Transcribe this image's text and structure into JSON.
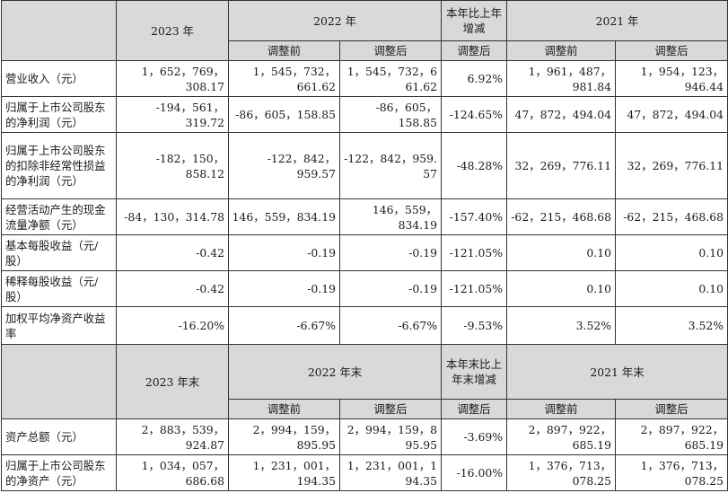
{
  "headers": {
    "section1": {
      "y2023": "2023 年",
      "y2022": "2022 年",
      "change": "本年比上年增减",
      "y2021": "2021 年"
    },
    "section2": {
      "y2023": "2023 年末",
      "y2022": "2022 年末",
      "change": "本年末比上年末增减",
      "y2021": "2021 年末"
    },
    "sub": {
      "before": "调整前",
      "after": "调整后"
    }
  },
  "rows1": [
    {
      "label": "营业收入（元）",
      "v2023": "1，652，769，308.17",
      "v2022_before": "1，545，732，661.62",
      "v2022_after": "1，545，732，661.62",
      "change": "6.92%",
      "v2021_before": "1，961，487，981.84",
      "v2021_after": "1，954，123，946.44"
    },
    {
      "label": "归属于上市公司股东的净利润（元）",
      "v2023": "-194，561，319.72",
      "v2022_before": "-86，605，158.85",
      "v2022_after": "-86，605，158.85",
      "change": "-124.65%",
      "v2021_before": "47，872，494.04",
      "v2021_after": "47，872，494.04"
    },
    {
      "label": "归属于上市公司股东的扣除非经常性损益的净利润（元）",
      "v2023": "-182，150，858.12",
      "v2022_before": "-122，842，959.57",
      "v2022_after": "-122，842，959.57",
      "change": "-48.28%",
      "v2021_before": "32，269，776.11",
      "v2021_after": "32，269，776.11"
    },
    {
      "label": "经营活动产生的现金流量净额（元）",
      "v2023": "-84，130，314.78",
      "v2022_before": "146，559，834.19",
      "v2022_after": "146，559，834.19",
      "change": "-157.40%",
      "v2021_before": "-62，215，468.68",
      "v2021_after": "-62，215，468.68"
    },
    {
      "label": "基本每股收益（元/股）",
      "v2023": "-0.42",
      "v2022_before": "-0.19",
      "v2022_after": "-0.19",
      "change": "-121.05%",
      "v2021_before": "0.10",
      "v2021_after": "0.10"
    },
    {
      "label": "稀释每股收益（元/股）",
      "v2023": "-0.42",
      "v2022_before": "-0.19",
      "v2022_after": "-0.19",
      "change": "-121.05%",
      "v2021_before": "0.10",
      "v2021_after": "0.10"
    },
    {
      "label": "加权平均净资产收益率",
      "v2023": "-16.20%",
      "v2022_before": "-6.67%",
      "v2022_after": "-6.67%",
      "change": "-9.53%",
      "v2021_before": "3.52%",
      "v2021_after": "3.52%"
    }
  ],
  "rows2": [
    {
      "label": "资产总额（元）",
      "v2023": "2，883，539，924.87",
      "v2022_before": "2，994，159，895.95",
      "v2022_after": "2，994，159，895.95",
      "change": "-3.69%",
      "v2021_before": "2，897，922，685.19",
      "v2021_after": "2，897，922，685.19"
    },
    {
      "label": "归属于上市公司股东的净资产（元）",
      "v2023": "1，034，057，686.68",
      "v2022_before": "1，231，001，194.35",
      "v2022_after": "1，231，001，194.35",
      "change": "-16.00%",
      "v2021_before": "1，376，713，078.25",
      "v2021_after": "1，376，713，078.25"
    }
  ]
}
